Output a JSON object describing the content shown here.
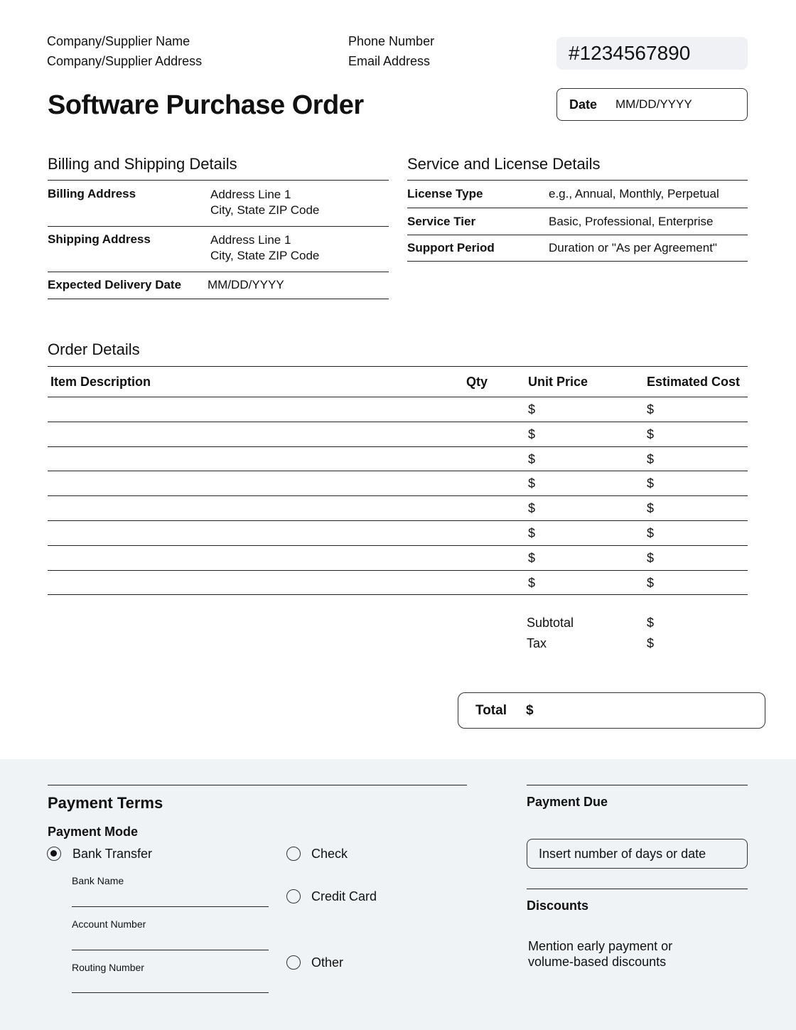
{
  "header": {
    "company_name": "Company/Supplier Name",
    "company_address": "Company/Supplier Address",
    "phone": "Phone Number",
    "email": "Email Address",
    "po_number": "#1234567890",
    "title": "Software Purchase Order",
    "date_label": "Date",
    "date_value": "MM/DD/YYYY"
  },
  "billing": {
    "heading": "Billing and Shipping Details",
    "rows": [
      {
        "label": "Billing Address",
        "line1": "Address Line 1",
        "line2": "City, State ZIP Code"
      },
      {
        "label": "Shipping Address",
        "line1": "Address Line 1",
        "line2": "City, State ZIP Code"
      },
      {
        "label": "Expected Delivery Date",
        "line1": "MM/DD/YYYY"
      }
    ]
  },
  "service": {
    "heading": "Service and License Details",
    "rows": [
      {
        "label": "License Type",
        "value": "e.g., Annual, Monthly, Perpetual"
      },
      {
        "label": "Service Tier",
        "value": "Basic, Professional, Enterprise"
      },
      {
        "label": "Support Period",
        "value": "Duration or \"As per Agreement\""
      }
    ]
  },
  "order": {
    "heading": "Order Details",
    "columns": [
      "Item Description",
      "Qty",
      "Unit Price",
      "Estimated Cost"
    ],
    "currency": "$",
    "row_count": 8,
    "subtotal_label": "Subtotal",
    "tax_label": "Tax",
    "total_label": "Total"
  },
  "payment": {
    "heading": "Payment Terms",
    "mode_label": "Payment Mode",
    "options": [
      {
        "label": "Bank Transfer",
        "selected": true
      },
      {
        "label": "Check",
        "selected": false
      },
      {
        "label": "Credit Card",
        "selected": false
      },
      {
        "label": "Other",
        "selected": false
      }
    ],
    "bank_fields": [
      "Bank Name",
      "Account Number",
      "Routing Number"
    ],
    "due_label": "Payment Due",
    "due_placeholder": "Insert number of days or date",
    "discounts_label": "Discounts",
    "discounts_line1": "Mention early payment or",
    "discounts_line2": "volume-based discounts"
  },
  "colors": {
    "panel_bg": "#eff3f6",
    "po_bg": "#eff1f5"
  }
}
